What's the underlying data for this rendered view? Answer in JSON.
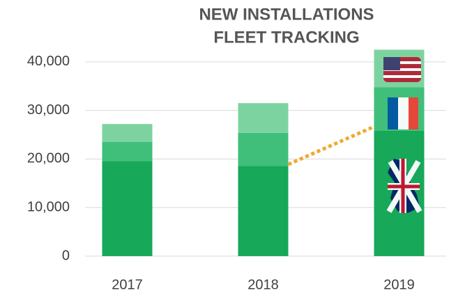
{
  "chart_data": {
    "type": "stacked_bar",
    "title": [
      "NEW INSTALLATIONS",
      "FLEET TRACKING"
    ],
    "categories": [
      "2017",
      "2018",
      "2019"
    ],
    "series": [
      {
        "color": "#17a85a",
        "values": [
          19600,
          18600,
          25800
        ]
      },
      {
        "color": "#3fbf7a",
        "values": [
          3900,
          6800,
          9000
        ]
      },
      {
        "color": "#7dd3a0",
        "values": [
          3700,
          6100,
          7700
        ]
      }
    ],
    "ylim": [
      0,
      45000
    ],
    "yticks": [
      0,
      {
        "value": 10000,
        "label": "10,000"
      },
      {
        "value": 20000,
        "label": "20,000"
      },
      {
        "value": 30000,
        "label": "30,000"
      },
      {
        "value": 40000,
        "label": "40,000"
      }
    ],
    "grid": true,
    "annotation_color": "#f0a830"
  }
}
